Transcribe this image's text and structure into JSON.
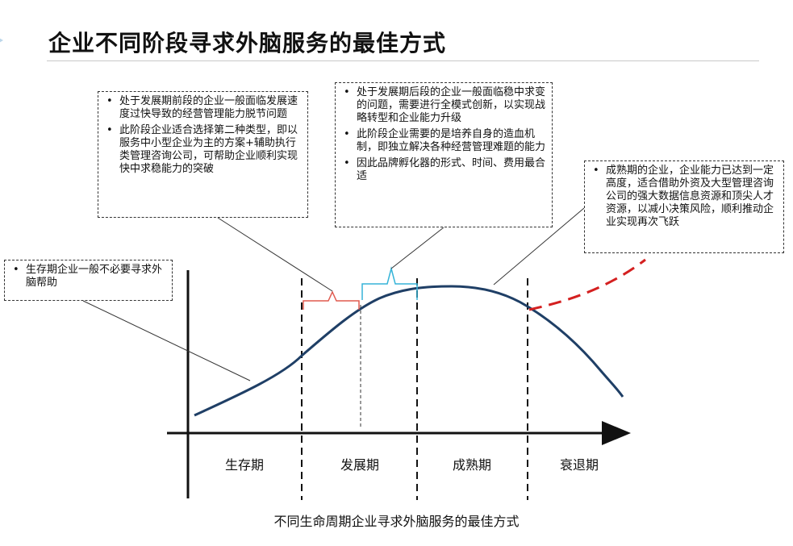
{
  "title": "企业不同阶段寻求外脑服务的最佳方式",
  "caption": "不同生命周期企业寻求外脑服务的最佳方式",
  "stages": [
    "生存期",
    "发展期",
    "成熟期",
    "衰退期"
  ],
  "notes": {
    "survival": [
      "生存期企业一般不必要寻求外脑帮助"
    ],
    "growth_early": [
      "处于发展期前段的企业一般面临发展速度过快导致的经营管理能力脱节问题",
      "此阶段企业适合选择第二种类型，即以服务中小型企业为主的方案+辅助执行类管理咨询公司，可帮助企业顺利实现快中求稳能力的突破"
    ],
    "growth_late": [
      "处于发展期后段的企业一般面临稳中求变的问题，需要进行全模式创新，以实现战略转型和企业能力升级",
      "此阶段企业需要的是培养自身的造血机制，即独立解决各种经营管理难题的能力",
      "因此品牌孵化器的形式、时间、费用最合适"
    ],
    "mature": [
      "成熟期的企业，企业能力已达到一定高度，适合借助外资及大型管理咨询公司的强大数据信息资源和顶尖人才资源，以减小决策风险，顺利推动企业实现再次飞跃"
    ]
  },
  "colors": {
    "curve": "#1f3f66",
    "brace_early": "#e05a4f",
    "brace_late": "#36b4d8",
    "dashed_growth": "#d42020",
    "axis": "#111111"
  }
}
